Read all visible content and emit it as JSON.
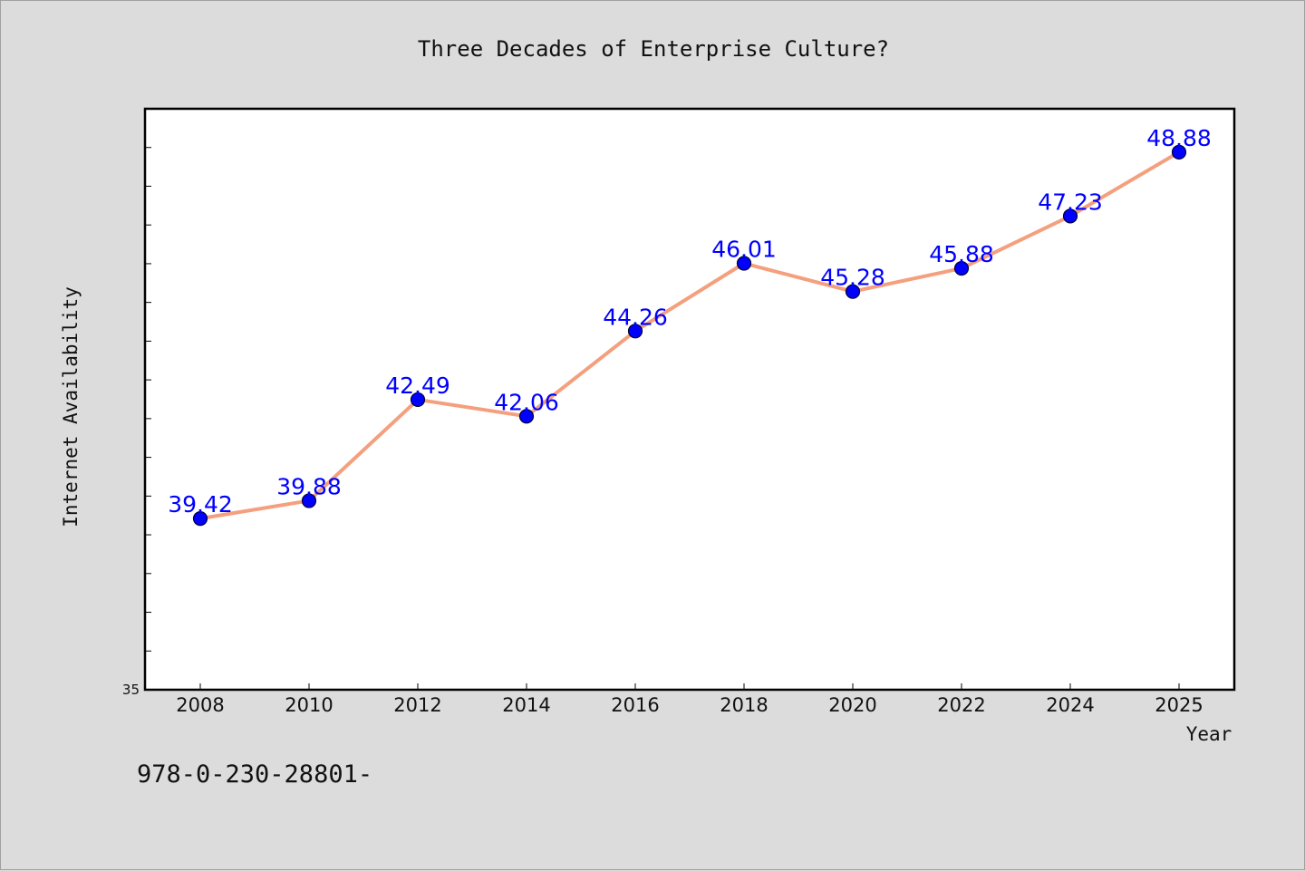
{
  "footer_text": "978-0-230-28801-",
  "chart_data": {
    "type": "line",
    "title": "Three Decades of Enterprise Culture?",
    "xlabel": "Year",
    "ylabel": "Internet Availability",
    "x": [
      "2008",
      "2010",
      "2012",
      "2014",
      "2016",
      "2018",
      "2020",
      "2022",
      "2024",
      "2025"
    ],
    "series": [
      {
        "values": [
          39.42,
          39.88,
          42.49,
          42.06,
          44.26,
          46.01,
          45.28,
          45.88,
          47.23,
          48.88
        ],
        "labels": [
          "39.42",
          "39.88",
          "42.49",
          "42.06",
          "44.26",
          "46.01",
          "45.28",
          "45.88",
          "47.23",
          "48.88"
        ]
      }
    ],
    "ylim": [
      35,
      50
    ],
    "ytick_labels": [
      "35"
    ],
    "grid": false,
    "colors": {
      "line": "#f4a07e",
      "marker": "#0000ff",
      "data_label": "#0000ff",
      "plot_bg": "#ffffff",
      "page_bg": "#dcdcdc"
    }
  }
}
